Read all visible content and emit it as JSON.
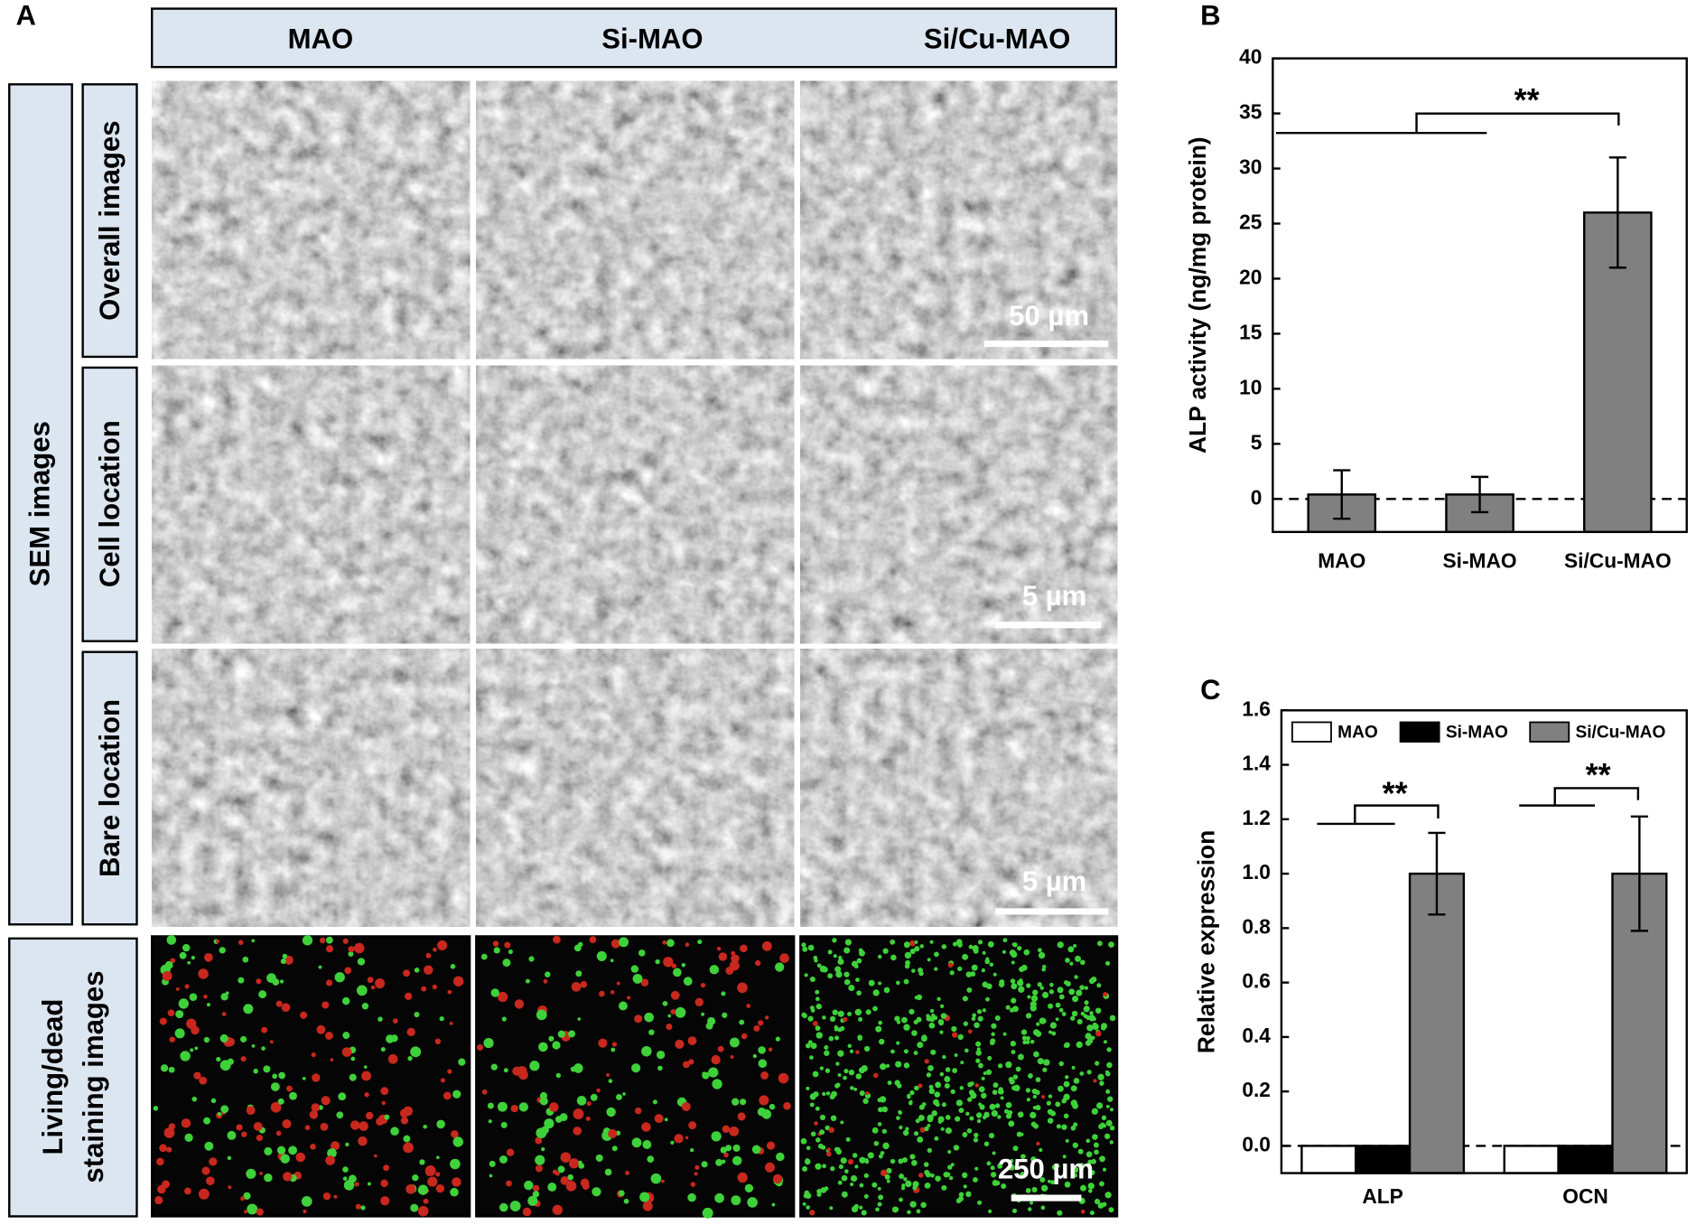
{
  "panel_labels": [
    "A",
    "B",
    "C"
  ],
  "panel_a": {
    "columns": [
      "MAO",
      "Si-MAO",
      "Si/Cu-MAO"
    ],
    "row_group": "SEM images",
    "rows": [
      "Overall images",
      "Cell location",
      "Bare location"
    ],
    "staining_row": [
      "Living/dead",
      "staining images"
    ],
    "scale_bars": [
      "50 µm",
      "5 µm",
      "5 µm",
      "250 µm"
    ]
  },
  "chart_data": [
    {
      "type": "bar",
      "ylabel": "ALP activity (ng/mg protein)",
      "categories": [
        "MAO",
        "Si-MAO",
        "Si/Cu-MAO"
      ],
      "values": [
        0.4,
        0.4,
        26
      ],
      "errors": [
        2.2,
        1.6,
        5
      ],
      "color": "#808080",
      "ylim": [
        -3,
        40
      ],
      "yticks": [
        0,
        5,
        10,
        15,
        20,
        25,
        30,
        35,
        40
      ],
      "reference_line": 0,
      "annotations": [
        "**"
      ]
    },
    {
      "type": "grouped_bar",
      "ylabel": "Relative expression",
      "categories": [
        "ALP",
        "OCN"
      ],
      "series": [
        {
          "name": "MAO",
          "color": "#ffffff",
          "values": [
            0,
            0
          ]
        },
        {
          "name": "Si-MAO",
          "color": "#000000",
          "values": [
            0,
            0
          ]
        },
        {
          "name": "Si/Cu-MAO",
          "color": "#808080",
          "values": [
            1.0,
            1.0
          ],
          "errors": [
            0.15,
            0.21
          ]
        }
      ],
      "ylim": [
        -0.1,
        1.6
      ],
      "yticks": [
        {
          "value": 0,
          "label": "0.0"
        },
        0.2,
        0.4,
        0.6,
        0.8,
        {
          "value": 1,
          "label": "1.0"
        },
        1.2,
        1.4,
        1.6
      ],
      "reference_line": 0,
      "legend": "top",
      "annotations": [
        "**",
        "**"
      ]
    }
  ]
}
